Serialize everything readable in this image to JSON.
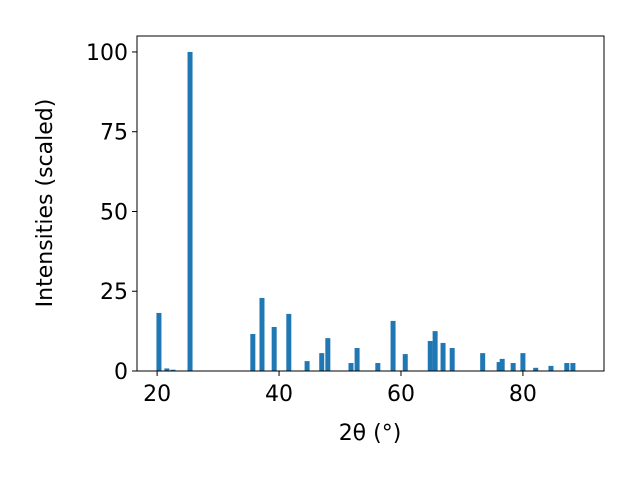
{
  "chart_data": {
    "type": "bar",
    "x_label": "2θ (°)",
    "y_label": "Intensities (scaled)",
    "x": [
      20.3,
      21.6,
      22.6,
      25.4,
      35.7,
      37.2,
      39.2,
      41.6,
      44.6,
      47.0,
      48.0,
      51.8,
      52.8,
      56.2,
      58.7,
      60.7,
      64.8,
      65.6,
      66.9,
      68.4,
      73.4,
      76.1,
      76.6,
      78.4,
      80.0,
      82.1,
      84.6,
      87.2,
      88.2
    ],
    "values": [
      18.2,
      0.8,
      0.4,
      100,
      11.6,
      22.9,
      13.8,
      17.9,
      3.1,
      5.6,
      10.3,
      2.5,
      7.2,
      2.5,
      15.7,
      5.3,
      9.4,
      12.5,
      8.8,
      7.2,
      5.6,
      2.8,
      3.8,
      2.5,
      5.6,
      1.0,
      1.6,
      2.5,
      2.5
    ],
    "color": "#1f77b4",
    "xlim": [
      16.7,
      93.3
    ],
    "xticks": [
      20,
      40,
      60,
      80
    ],
    "ylim": [
      0,
      105
    ],
    "yticks": [
      0,
      25,
      50,
      75,
      100
    ],
    "grid": false
  }
}
